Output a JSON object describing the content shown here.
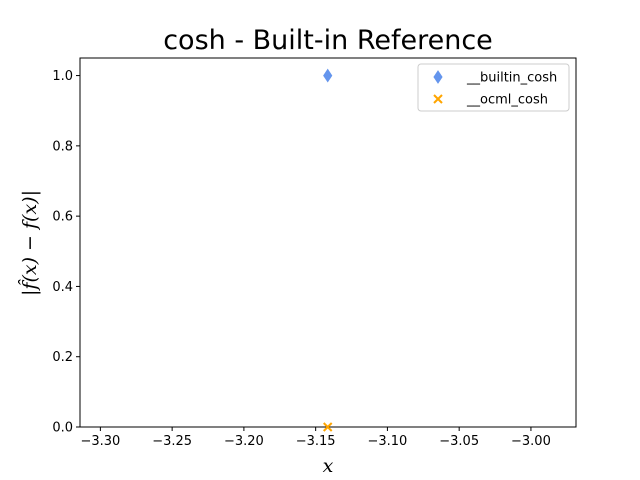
{
  "chart_data": {
    "type": "scatter",
    "title": "cosh - Built-in Reference",
    "xlabel": "x",
    "ylabel": "|f̂(x) − f(x)|",
    "xlim": [
      -3.3142,
      -2.9686
    ],
    "ylim": [
      0.0,
      1.05
    ],
    "xticks": [
      -3.3,
      -3.25,
      -3.2,
      -3.15,
      -3.1,
      -3.05,
      -3.0
    ],
    "xtick_labels": [
      "−3.30",
      "−3.25",
      "−3.20",
      "−3.15",
      "−3.10",
      "−3.05",
      "−3.00"
    ],
    "yticks": [
      0.0,
      0.2,
      0.4,
      0.6,
      0.8,
      1.0
    ],
    "ytick_labels": [
      "0.0",
      "0.2",
      "0.4",
      "0.6",
      "0.8",
      "1.0"
    ],
    "grid": false,
    "legend_position": "top-right",
    "series": [
      {
        "name": "__builtin_cosh",
        "marker": "thin_diamond",
        "color": "#6495ED",
        "points": [
          [
            -3.1416,
            1.0
          ]
        ]
      },
      {
        "name": "__ocml_cosh",
        "marker": "x",
        "color": "#FFA500",
        "points": [
          [
            -3.1416,
            0.0
          ]
        ]
      }
    ]
  }
}
